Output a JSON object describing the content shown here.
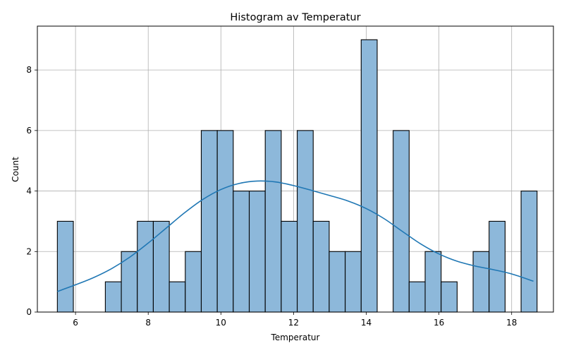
{
  "chart_data": {
    "type": "bar",
    "title": "Histogram av Temperatur",
    "xlabel": "Temperatur",
    "ylabel": "Count",
    "xlim": [
      4.95,
      19.15
    ],
    "ylim": [
      0,
      9.45
    ],
    "xticks": [
      6,
      8,
      10,
      12,
      14,
      16,
      18
    ],
    "yticks": [
      0,
      2,
      4,
      6,
      8
    ],
    "grid": true,
    "bin_edges": [
      5.5,
      5.94,
      6.38,
      6.82,
      7.26,
      7.7,
      8.14,
      8.58,
      9.02,
      9.46,
      9.9,
      10.34,
      10.78,
      11.22,
      11.66,
      12.1,
      12.54,
      12.98,
      13.42,
      13.86,
      14.3,
      14.74,
      15.18,
      15.62,
      16.06,
      16.5,
      16.94,
      17.38,
      17.82,
      18.26,
      18.7
    ],
    "counts": [
      3,
      0,
      0,
      1,
      2,
      3,
      3,
      1,
      2,
      6,
      6,
      4,
      4,
      6,
      3,
      6,
      3,
      2,
      2,
      9,
      0,
      6,
      1,
      2,
      1,
      0,
      2,
      3,
      0,
      4
    ],
    "kde": {
      "x": [
        5.5,
        6.0,
        6.5,
        7.0,
        7.5,
        8.0,
        8.5,
        9.0,
        9.5,
        10.0,
        10.5,
        11.0,
        11.5,
        12.0,
        12.5,
        13.0,
        13.5,
        14.0,
        14.5,
        15.0,
        15.5,
        16.0,
        16.5,
        17.0,
        17.5,
        18.0,
        18.6
      ],
      "y": [
        0.68,
        0.9,
        1.14,
        1.44,
        1.82,
        2.28,
        2.78,
        3.28,
        3.72,
        4.05,
        4.25,
        4.33,
        4.3,
        4.18,
        4.02,
        3.85,
        3.67,
        3.42,
        3.08,
        2.66,
        2.25,
        1.92,
        1.68,
        1.52,
        1.4,
        1.26,
        1.02
      ]
    },
    "colors": {
      "bar_fill": "#8db8da",
      "bar_edge": "#000000",
      "kde_line": "#1f77b4",
      "grid": "#b0b0b0"
    }
  }
}
